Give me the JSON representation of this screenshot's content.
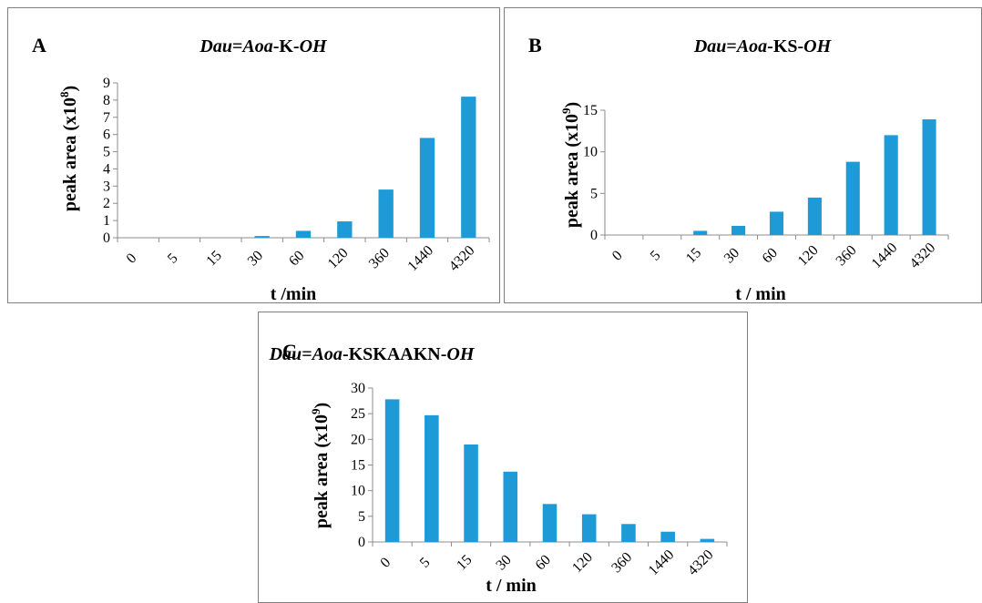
{
  "panels": [
    {
      "id": "A",
      "letter": "A",
      "title_parts": [
        {
          "t": "Dau",
          "i": true
        },
        {
          "t": "=",
          "i": false
        },
        {
          "t": "Aoa",
          "i": true
        },
        {
          "t": "-K-",
          "i": false
        },
        {
          "t": "OH",
          "i": true
        }
      ]
    },
    {
      "id": "B",
      "letter": "B",
      "title_parts": [
        {
          "t": "Dau",
          "i": true
        },
        {
          "t": "=",
          "i": false
        },
        {
          "t": "Aoa",
          "i": true
        },
        {
          "t": "-KS-",
          "i": false
        },
        {
          "t": "OH",
          "i": true
        }
      ]
    },
    {
      "id": "C",
      "letter": "C",
      "title_parts": [
        {
          "t": "Dau",
          "i": true
        },
        {
          "t": "=",
          "i": false
        },
        {
          "t": "Aoa",
          "i": true
        },
        {
          "t": "-KSKAAKN-",
          "i": false
        },
        {
          "t": "OH",
          "i": true
        }
      ]
    }
  ],
  "chart_data": [
    {
      "type": "bar",
      "title": "Dau=Aoa-K-OH",
      "categories": [
        "0",
        "5",
        "15",
        "30",
        "60",
        "120",
        "360",
        "1440",
        "4320"
      ],
      "values": [
        0,
        0,
        0,
        0.1,
        0.4,
        0.95,
        2.8,
        5.8,
        8.2
      ],
      "xlabel": "t /min",
      "ylabel_base": "peak area (x10",
      "ylabel_exp": "8",
      "ylabel_end": ")",
      "ylim": [
        0,
        9
      ],
      "yticks": [
        "0",
        "1",
        "2",
        "3",
        "4",
        "5",
        "6",
        "7",
        "8",
        "9"
      ],
      "bar_color": "#1e9ad6",
      "grid": false
    },
    {
      "type": "bar",
      "title": "Dau=Aoa-KS-OH",
      "categories": [
        "0",
        "5",
        "15",
        "30",
        "60",
        "120",
        "360",
        "1440",
        "4320"
      ],
      "values": [
        0,
        0,
        0.5,
        1.1,
        2.8,
        4.5,
        8.8,
        12.0,
        13.9
      ],
      "xlabel": "t / min",
      "ylabel_base": "peak area (x10",
      "ylabel_exp": "9",
      "ylabel_end": ")",
      "ylim": [
        0,
        15
      ],
      "yticks": [
        "0",
        "5",
        "10",
        "15"
      ],
      "bar_color": "#1e9ad6",
      "grid": false
    },
    {
      "type": "bar",
      "title": "Dau=Aoa-KSKAAKN-OH",
      "categories": [
        "0",
        "5",
        "15",
        "30",
        "60",
        "120",
        "360",
        "1440",
        "4320"
      ],
      "values": [
        27.8,
        24.7,
        19.0,
        13.7,
        7.4,
        5.4,
        3.5,
        2.0,
        0.6
      ],
      "xlabel": "t / min",
      "ylabel_base": "peak area (x10",
      "ylabel_exp": "9",
      "ylabel_end": ")",
      "ylim": [
        0,
        30
      ],
      "yticks": [
        "0",
        "5",
        "10",
        "15",
        "20",
        "25",
        "30"
      ],
      "bar_color": "#1e9ad6",
      "grid": false
    }
  ]
}
